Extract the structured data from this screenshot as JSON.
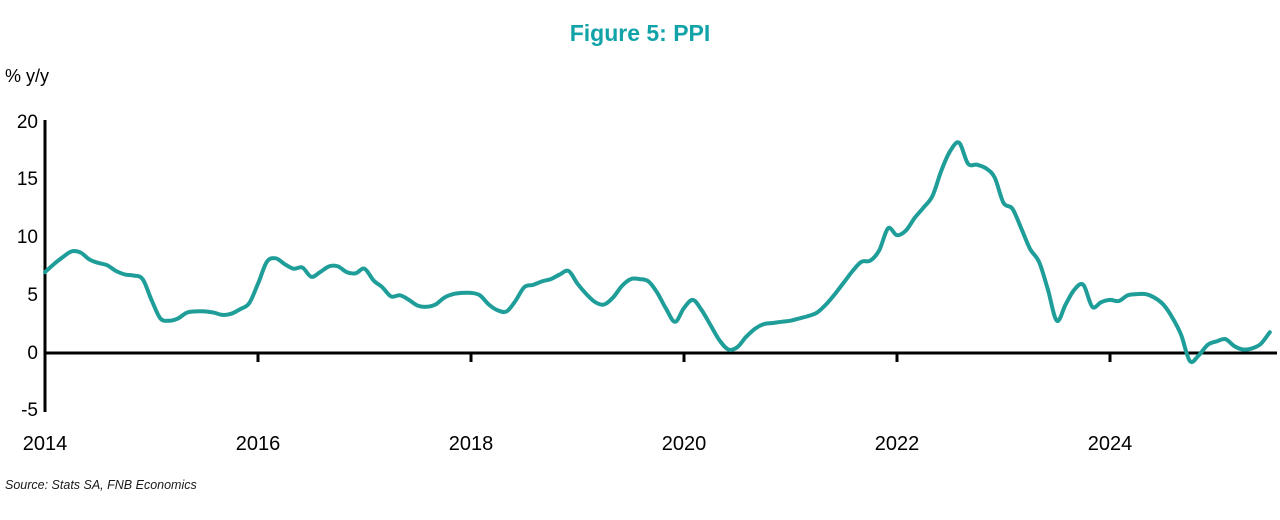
{
  "page": {
    "title": "Figure 5: PPI",
    "y_axis_unit_label": "% y/y",
    "source_note": "Source: Stats SA, FNB Economics"
  },
  "colors": {
    "line": "#1F9E99",
    "title": "#11A3A8",
    "axis": "#000000",
    "background": "#FFFFFF"
  },
  "chart_data": {
    "type": "line",
    "title": "Figure 5: PPI",
    "ylabel": "% y/y",
    "xlabel": "",
    "grid": false,
    "legend": "none",
    "ylim": [
      -5,
      20
    ],
    "y_ticks": [
      20,
      15,
      10,
      5,
      0,
      -5
    ],
    "x_tick_years": [
      2014,
      2016,
      2018,
      2020,
      2022,
      2024
    ],
    "x_range_years": [
      2014.0,
      2025.5
    ],
    "zero_baseline": true,
    "series": [
      {
        "name": "PPI % y/y",
        "frequency": "monthly",
        "start": "2014-01",
        "values": [
          7.0,
          7.7,
          8.3,
          8.8,
          8.7,
          8.1,
          7.8,
          7.6,
          7.1,
          6.8,
          6.7,
          6.4,
          4.6,
          3.0,
          2.8,
          3.0,
          3.5,
          3.6,
          3.6,
          3.5,
          3.3,
          3.4,
          3.8,
          4.3,
          6.0,
          7.9,
          8.2,
          7.7,
          7.3,
          7.4,
          6.6,
          7.0,
          7.5,
          7.5,
          7.0,
          6.9,
          7.3,
          6.3,
          5.7,
          4.9,
          5.0,
          4.6,
          4.1,
          4.0,
          4.2,
          4.8,
          5.1,
          5.2,
          5.2,
          5.0,
          4.2,
          3.7,
          3.6,
          4.5,
          5.7,
          5.9,
          6.2,
          6.4,
          6.8,
          7.1,
          6.0,
          5.1,
          4.4,
          4.2,
          4.8,
          5.8,
          6.4,
          6.4,
          6.2,
          5.2,
          3.8,
          2.7,
          3.9,
          4.6,
          3.7,
          2.4,
          1.1,
          0.3,
          0.5,
          1.4,
          2.1,
          2.5,
          2.6,
          2.7,
          2.8,
          3.0,
          3.2,
          3.5,
          4.2,
          5.1,
          6.1,
          7.1,
          7.9,
          8.0,
          8.9,
          10.8,
          10.2,
          10.6,
          11.7,
          12.6,
          13.6,
          15.8,
          17.5,
          18.2,
          16.4,
          16.3,
          16.0,
          15.2,
          13.0,
          12.5,
          10.8,
          9.0,
          7.9,
          5.5,
          2.8,
          4.2,
          5.5,
          5.9,
          4.0,
          4.4,
          4.6,
          4.5,
          5.0,
          5.1,
          5.1,
          4.8,
          4.2,
          3.1,
          1.6,
          -0.7,
          -0.2,
          0.7,
          1.0,
          1.2,
          0.6,
          0.3,
          0.4,
          0.8,
          1.8
        ]
      }
    ]
  }
}
